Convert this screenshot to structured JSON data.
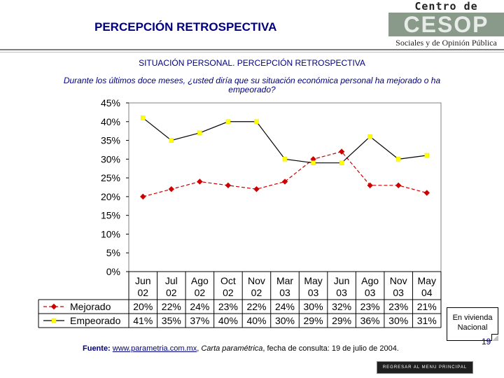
{
  "header": {
    "title": "PERCEPCIÓN RETROSPECTIVA",
    "logo_top": "Centro de Estudios",
    "logo_mid": "CESOP",
    "logo_bottom": "Sociales y de Opinión Pública"
  },
  "subtitle": "SITUACIÓN PERSONAL. PERCEPCIÓN RETROSPECTIVA",
  "question": "Durante los últimos doce meses, ¿usted diría que su situación económica personal ha mejorado o ha empeorado?",
  "chart_data": {
    "type": "line",
    "title": "",
    "xlabel": "",
    "ylabel": "",
    "ylim": [
      0,
      45
    ],
    "yticks": [
      "0%",
      "5%",
      "10%",
      "15%",
      "20%",
      "25%",
      "30%",
      "35%",
      "40%",
      "45%"
    ],
    "categories": [
      [
        "Jun",
        "02"
      ],
      [
        "Jul",
        "02"
      ],
      [
        "Ago",
        "02"
      ],
      [
        "Oct",
        "02"
      ],
      [
        "Nov",
        "02"
      ],
      [
        "Mar",
        "03"
      ],
      [
        "May",
        "03"
      ],
      [
        "Jun",
        "03"
      ],
      [
        "Ago",
        "03"
      ],
      [
        "Nov",
        "03"
      ],
      [
        "May",
        "04"
      ]
    ],
    "series": [
      {
        "name": "Mejorado",
        "values": [
          20,
          22,
          24,
          23,
          22,
          24,
          30,
          32,
          23,
          23,
          21
        ],
        "color": "#cc0000",
        "marker": "#cc0000",
        "dash": true
      },
      {
        "name": "Empeorado",
        "values": [
          41,
          35,
          37,
          40,
          40,
          30,
          29,
          29,
          36,
          30,
          31
        ],
        "color": "#000000",
        "marker": "#ffff00",
        "dash": false
      }
    ],
    "table_labels": {
      "Mejorado": [
        "20%",
        "22%",
        "24%",
        "23%",
        "22%",
        "24%",
        "30%",
        "32%",
        "23%",
        "23%",
        "21%"
      ],
      "Empeorado": [
        "41%",
        "35%",
        "37%",
        "40%",
        "40%",
        "30%",
        "29%",
        "29%",
        "36%",
        "30%",
        "31%"
      ]
    }
  },
  "note": {
    "line1": "En vivienda",
    "line2": "Nacional"
  },
  "footer": {
    "source_label": "Fuente:",
    "source_url": "www.parametria.com.mx",
    "source_pub": "Carta paramétrica",
    "source_rest": ", fecha de consulta: 19 de julio de 2004.",
    "menu_button": "REGRESAR AL MENU PRINCIPAL",
    "page_number": "19"
  }
}
